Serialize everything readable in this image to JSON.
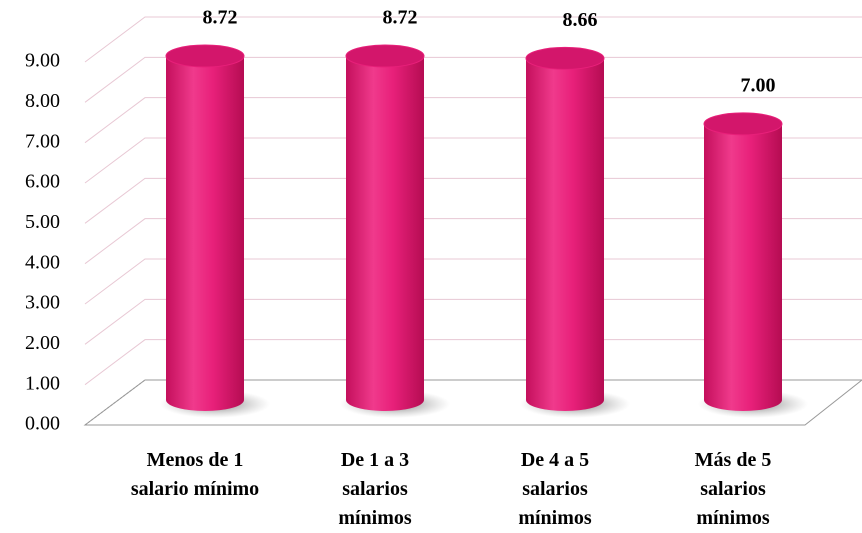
{
  "chart_data": {
    "type": "bar",
    "categories": [
      "Menos de 1 salario mínimo",
      "De 1 a 3 salarios mínimos",
      "De 4 a 5 salarios mínimos",
      "Más de 5 salarios mínimos"
    ],
    "values": [
      8.72,
      8.72,
      8.66,
      7.0
    ],
    "value_labels": [
      "8.72",
      "8.72",
      "8.66",
      "7.00"
    ],
    "color": "#e8207a",
    "ylim": [
      0,
      9
    ],
    "yticks": [
      {
        "value": 0,
        "label": "0.00"
      },
      {
        "value": 1,
        "label": "1.00"
      },
      {
        "value": 2,
        "label": "2.00"
      },
      {
        "value": 3,
        "label": "3.00"
      },
      {
        "value": 4,
        "label": "4.00"
      },
      {
        "value": 5,
        "label": "5.00"
      },
      {
        "value": 6,
        "label": "6.00"
      },
      {
        "value": 7,
        "label": "7.00"
      },
      {
        "value": 8,
        "label": "8.00"
      },
      {
        "value": 9,
        "label": "9.00"
      }
    ],
    "grid": true
  }
}
